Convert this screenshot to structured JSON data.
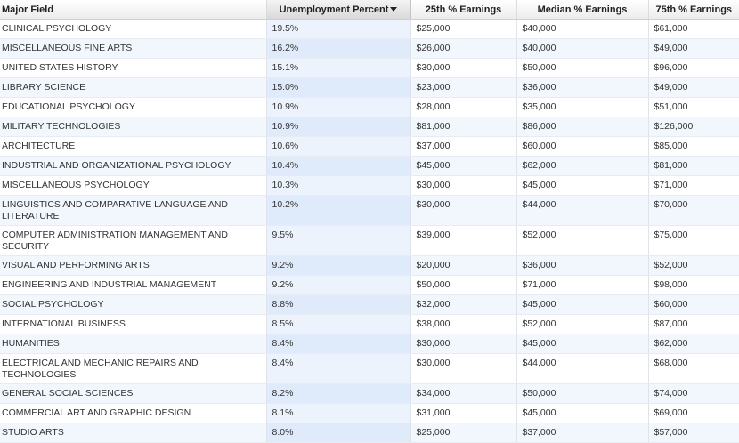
{
  "table": {
    "columns": [
      "Major Field",
      "Unemployment Percent",
      "25th % Earnings",
      "Median % Earnings",
      "75th % Earnings"
    ],
    "sorted_column": "Unemployment Percent",
    "sort_direction": "descending",
    "rows": [
      [
        "CLINICAL PSYCHOLOGY",
        "19.5%",
        "$25,000",
        "$40,000",
        "$61,000"
      ],
      [
        "MISCELLANEOUS FINE ARTS",
        "16.2%",
        "$26,000",
        "$40,000",
        "$49,000"
      ],
      [
        "UNITED STATES HISTORY",
        "15.1%",
        "$30,000",
        "$50,000",
        "$96,000"
      ],
      [
        "LIBRARY SCIENCE",
        "15.0%",
        "$23,000",
        "$36,000",
        "$49,000"
      ],
      [
        "EDUCATIONAL PSYCHOLOGY",
        "10.9%",
        "$28,000",
        "$35,000",
        "$51,000"
      ],
      [
        "MILITARY TECHNOLOGIES",
        "10.9%",
        "$81,000",
        "$86,000",
        "$126,000"
      ],
      [
        "ARCHITECTURE",
        "10.6%",
        "$37,000",
        "$60,000",
        "$85,000"
      ],
      [
        "INDUSTRIAL AND ORGANIZATIONAL PSYCHOLOGY",
        "10.4%",
        "$45,000",
        "$62,000",
        "$81,000"
      ],
      [
        "MISCELLANEOUS PSYCHOLOGY",
        "10.3%",
        "$30,000",
        "$45,000",
        "$71,000"
      ],
      [
        "LINGUISTICS AND COMPARATIVE LANGUAGE AND LITERATURE",
        "10.2%",
        "$30,000",
        "$44,000",
        "$70,000"
      ],
      [
        "COMPUTER ADMINISTRATION MANAGEMENT AND SECURITY",
        "9.5%",
        "$39,000",
        "$52,000",
        "$75,000"
      ],
      [
        "VISUAL AND PERFORMING ARTS",
        "9.2%",
        "$20,000",
        "$36,000",
        "$52,000"
      ],
      [
        "ENGINEERING AND INDUSTRIAL MANAGEMENT",
        "9.2%",
        "$50,000",
        "$71,000",
        "$98,000"
      ],
      [
        "SOCIAL PSYCHOLOGY",
        "8.8%",
        "$32,000",
        "$45,000",
        "$60,000"
      ],
      [
        "INTERNATIONAL BUSINESS",
        "8.5%",
        "$38,000",
        "$52,000",
        "$87,000"
      ],
      [
        "HUMANITIES",
        "8.4%",
        "$30,000",
        "$45,000",
        "$62,000"
      ],
      [
        "ELECTRICAL AND MECHANIC REPAIRS AND TECHNOLOGIES",
        "8.4%",
        "$30,000",
        "$44,000",
        "$68,000"
      ],
      [
        "GENERAL SOCIAL SCIENCES",
        "8.2%",
        "$34,000",
        "$50,000",
        "$74,000"
      ],
      [
        "COMMERCIAL ART AND GRAPHIC DESIGN",
        "8.1%",
        "$31,000",
        "$45,000",
        "$69,000"
      ],
      [
        "STUDIO ARTS",
        "8.0%",
        "$25,000",
        "$37,000",
        "$57,000"
      ]
    ]
  },
  "icons": {
    "sort": "sort-descending-icon"
  },
  "colors": {
    "row_alt": "#f2f7fd",
    "sorted_column": "#ecf3fc",
    "header": "#ececec"
  }
}
